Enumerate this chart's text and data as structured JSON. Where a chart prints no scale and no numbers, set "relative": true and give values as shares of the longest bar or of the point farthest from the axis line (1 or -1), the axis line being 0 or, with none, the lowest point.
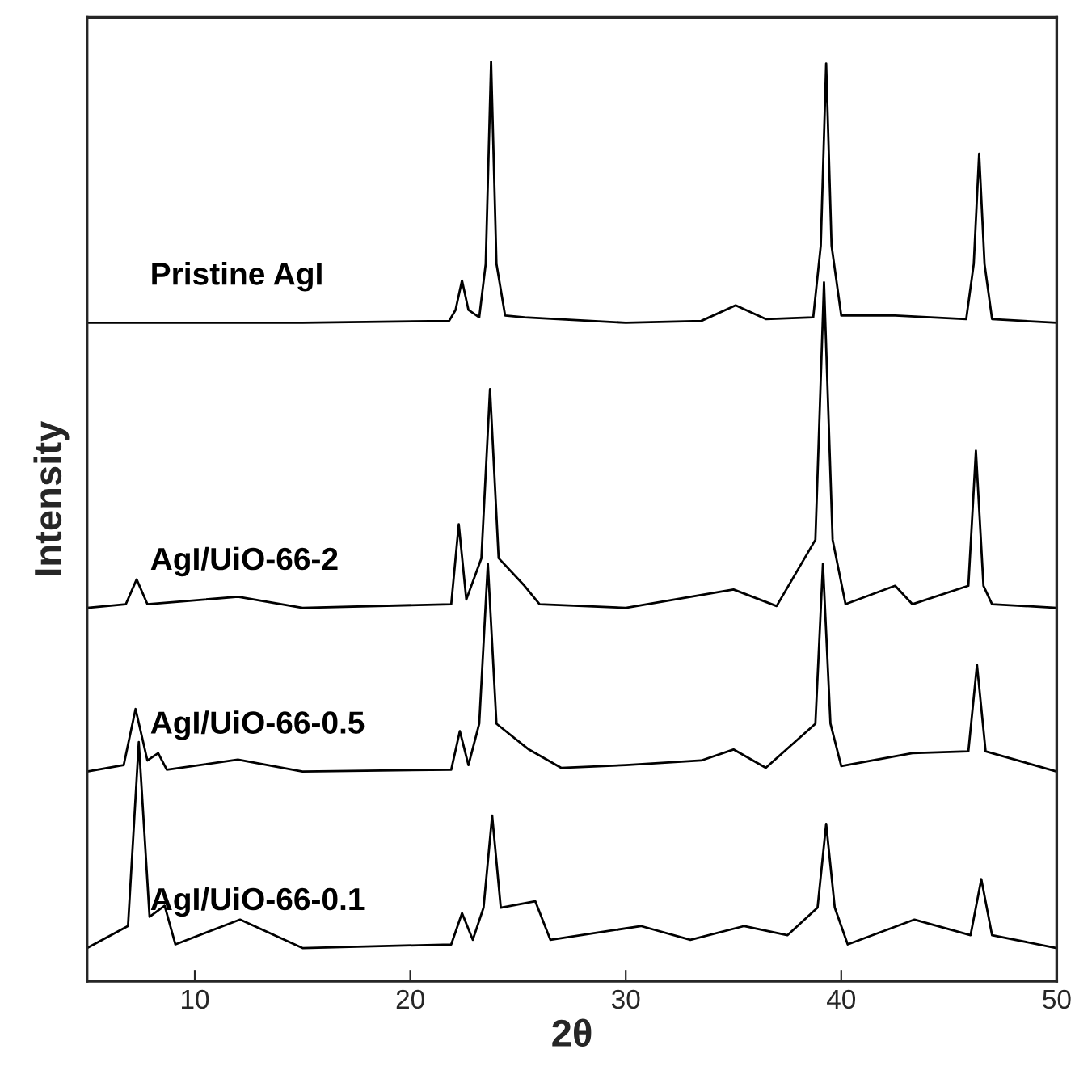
{
  "chart_data": {
    "type": "line",
    "relative": true,
    "xlabel": "2θ",
    "ylabel": "Intensity",
    "xlim": [
      5,
      50
    ],
    "xticks": [
      10,
      20,
      30,
      40,
      50
    ],
    "grid": false,
    "legend": false,
    "marker": "none",
    "line_style": "solid",
    "series": [
      {
        "name": "Pristine AgI",
        "color": "#000000",
        "x": [
          5,
          15,
          21.8,
          22.1,
          22.4,
          22.7,
          23.2,
          23.5,
          23.75,
          24.0,
          24.4,
          25.3,
          30,
          33.5,
          35.1,
          36.5,
          38.7,
          39.05,
          39.3,
          39.55,
          40,
          42.5,
          45.8,
          46.15,
          46.4,
          46.65,
          47,
          50
        ],
        "values": [
          0.716,
          0.716,
          0.718,
          0.73,
          0.762,
          0.73,
          0.722,
          0.78,
          1.0,
          0.78,
          0.724,
          0.722,
          0.716,
          0.718,
          0.735,
          0.72,
          0.722,
          0.8,
          0.998,
          0.8,
          0.724,
          0.724,
          0.72,
          0.78,
          0.9,
          0.78,
          0.72,
          0.716
        ]
      },
      {
        "name": "AgI/UiO-66-2",
        "color": "#000000",
        "x": [
          5,
          6.8,
          7.3,
          7.8,
          12,
          15,
          21.9,
          22.25,
          22.6,
          23.3,
          23.7,
          24.1,
          25.3,
          26,
          30,
          35,
          37,
          38.8,
          39.2,
          39.6,
          40.2,
          42.5,
          43.3,
          45.9,
          46.25,
          46.6,
          47,
          50
        ],
        "values": [
          0.406,
          0.41,
          0.437,
          0.41,
          0.418,
          0.406,
          0.41,
          0.497,
          0.415,
          0.46,
          0.644,
          0.46,
          0.43,
          0.41,
          0.406,
          0.426,
          0.408,
          0.48,
          0.76,
          0.48,
          0.41,
          0.43,
          0.41,
          0.43,
          0.577,
          0.43,
          0.41,
          0.406
        ]
      },
      {
        "name": "AgI/UiO-66-0.5",
        "color": "#000000",
        "x": [
          5,
          6.7,
          7.25,
          7.8,
          8.3,
          8.7,
          12,
          15,
          21.9,
          22.3,
          22.7,
          23.2,
          23.6,
          24,
          25.5,
          27,
          30,
          33.5,
          35,
          36.5,
          38.8,
          39.15,
          39.5,
          40,
          43.3,
          45.9,
          46.3,
          46.7,
          50
        ],
        "values": [
          0.228,
          0.235,
          0.296,
          0.24,
          0.248,
          0.23,
          0.241,
          0.228,
          0.23,
          0.272,
          0.235,
          0.28,
          0.454,
          0.28,
          0.252,
          0.232,
          0.235,
          0.24,
          0.252,
          0.232,
          0.28,
          0.454,
          0.28,
          0.234,
          0.248,
          0.25,
          0.344,
          0.25,
          0.228
        ]
      },
      {
        "name": "AgI/UiO-66-0.1",
        "color": "#000000",
        "x": [
          5,
          6.9,
          7.4,
          7.9,
          8.6,
          9.1,
          12.1,
          15,
          21.9,
          22.4,
          22.9,
          23.4,
          23.8,
          24.2,
          25.8,
          26.5,
          30.7,
          33,
          35.5,
          37.5,
          38.9,
          39.3,
          39.7,
          40.3,
          43.4,
          46,
          46.5,
          47,
          50
        ],
        "values": [
          0.036,
          0.06,
          0.26,
          0.07,
          0.082,
          0.04,
          0.067,
          0.036,
          0.04,
          0.074,
          0.045,
          0.08,
          0.18,
          0.08,
          0.087,
          0.045,
          0.06,
          0.045,
          0.06,
          0.05,
          0.08,
          0.171,
          0.08,
          0.04,
          0.067,
          0.05,
          0.111,
          0.05,
          0.036
        ]
      }
    ]
  }
}
